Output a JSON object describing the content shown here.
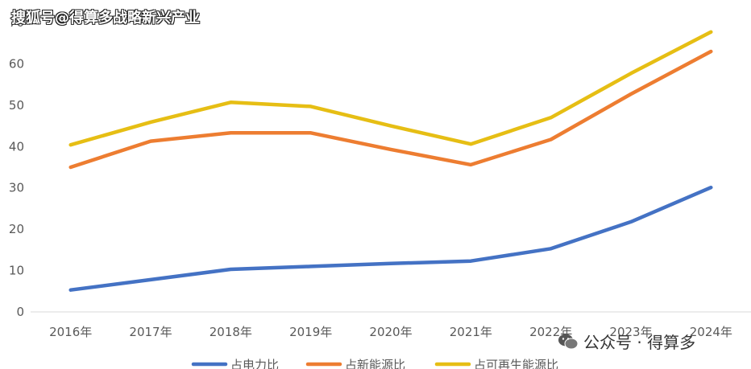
{
  "watermark_top": "搜狐号@得算多战略新兴产业",
  "watermark_bottom": "公众号 · 得算多",
  "chart_data": {
    "type": "line",
    "x": [
      "2016年",
      "2017年",
      "2018年",
      "2019年",
      "2020年",
      "2021年",
      "2022年",
      "2023年",
      "2024年"
    ],
    "ylim": [
      0,
      70
    ],
    "yticks": [
      0,
      10,
      20,
      30,
      40,
      50,
      60,
      70
    ],
    "grid": false,
    "legend_position": "bottom",
    "series": [
      {
        "name": "占电力比",
        "color": "#4472C4",
        "values": [
          5.3,
          7.8,
          10.3,
          11.0,
          11.7,
          12.3,
          15.3,
          21.8,
          30.1
        ]
      },
      {
        "name": "占新能源比",
        "color": "#ED7D31",
        "values": [
          35.0,
          41.3,
          43.3,
          43.3,
          39.3,
          35.6,
          41.7,
          52.7,
          63.0
        ]
      },
      {
        "name": "占可再生能源比",
        "color": "#E6BE14",
        "values": [
          40.4,
          45.9,
          50.7,
          49.7,
          45.0,
          40.6,
          47.0,
          57.7,
          67.7
        ]
      }
    ]
  }
}
